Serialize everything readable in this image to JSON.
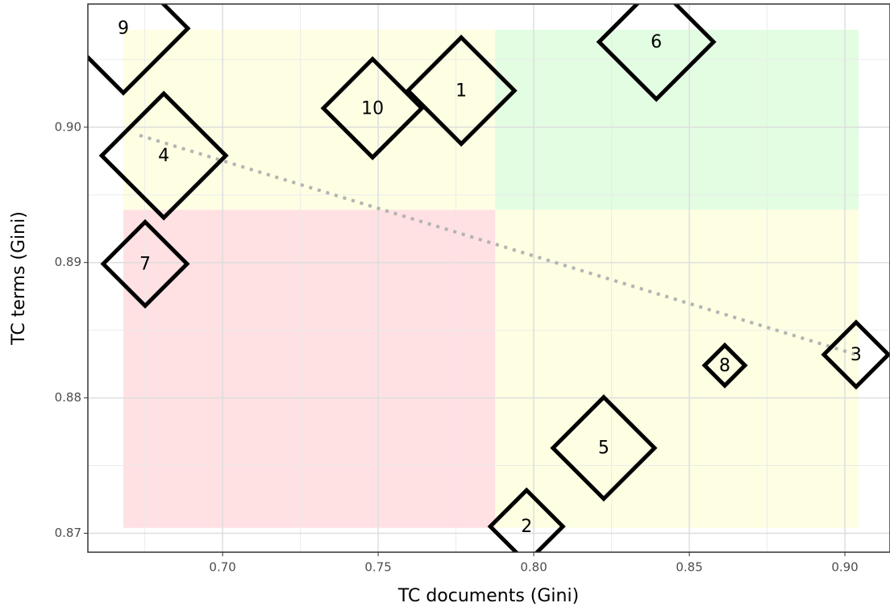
{
  "chart_data": {
    "type": "scatter",
    "x_label": "TC documents (Gini)",
    "y_label": "TC terms (Gini)",
    "x": [
      0.7767,
      0.7977,
      0.9036,
      0.6811,
      0.8225,
      0.8394,
      0.6751,
      0.8614,
      0.6681,
      0.7482
    ],
    "y": [
      0.9027,
      0.8705,
      0.8832,
      0.8979,
      0.8763,
      0.9063,
      0.8899,
      0.8824,
      0.9073,
      0.9014
    ],
    "sizes": [
      66,
      45,
      40,
      77,
      63,
      71,
      52,
      25,
      80,
      61
    ],
    "labels": [
      "1",
      "2",
      "3",
      "4",
      "5",
      "6",
      "7",
      "8",
      "9",
      "10"
    ],
    "marker_color": "#000000",
    "xlim": [
      0.6567,
      0.9145
    ],
    "ylim": [
      0.8686,
      0.9091
    ],
    "xticks": [
      {
        "value": 0.7,
        "label": "0.70"
      },
      {
        "value": 0.75,
        "label": "0.75"
      },
      {
        "value": 0.8,
        "label": "0.80"
      },
      {
        "value": 0.85,
        "label": "0.85"
      },
      {
        "value": 0.9,
        "label": "0.90"
      }
    ],
    "yticks": [
      {
        "value": 0.87,
        "label": "0.87"
      },
      {
        "value": 0.88,
        "label": "0.88"
      },
      {
        "value": 0.89,
        "label": "0.89"
      },
      {
        "value": 0.9,
        "label": "0.90"
      }
    ],
    "x_minor_ticks": [
      0.675,
      0.725,
      0.775,
      0.825,
      0.875
    ],
    "y_minor_ticks": [
      0.875,
      0.885,
      0.895,
      0.905
    ],
    "grid": true,
    "regions": [
      {
        "xlim": [
          0.6681,
          0.7876
        ],
        "ylim": [
          0.8704,
          0.8939
        ],
        "color": "#ffe0e3"
      },
      {
        "xlim": [
          0.6681,
          0.7876
        ],
        "ylim": [
          0.8939,
          0.9072
        ],
        "color": "#fefee3"
      },
      {
        "xlim": [
          0.7876,
          0.9044
        ],
        "ylim": [
          0.8939,
          0.9072
        ],
        "color": "#e2fde2"
      },
      {
        "xlim": [
          0.7876,
          0.9044
        ],
        "ylim": [
          0.8704,
          0.8939
        ],
        "color": "#fefee3"
      }
    ],
    "trend_line": {
      "x": [
        0.6733,
        0.9036
      ],
      "y": [
        0.8994,
        0.8832
      ],
      "color": "#b3b3b3"
    }
  }
}
